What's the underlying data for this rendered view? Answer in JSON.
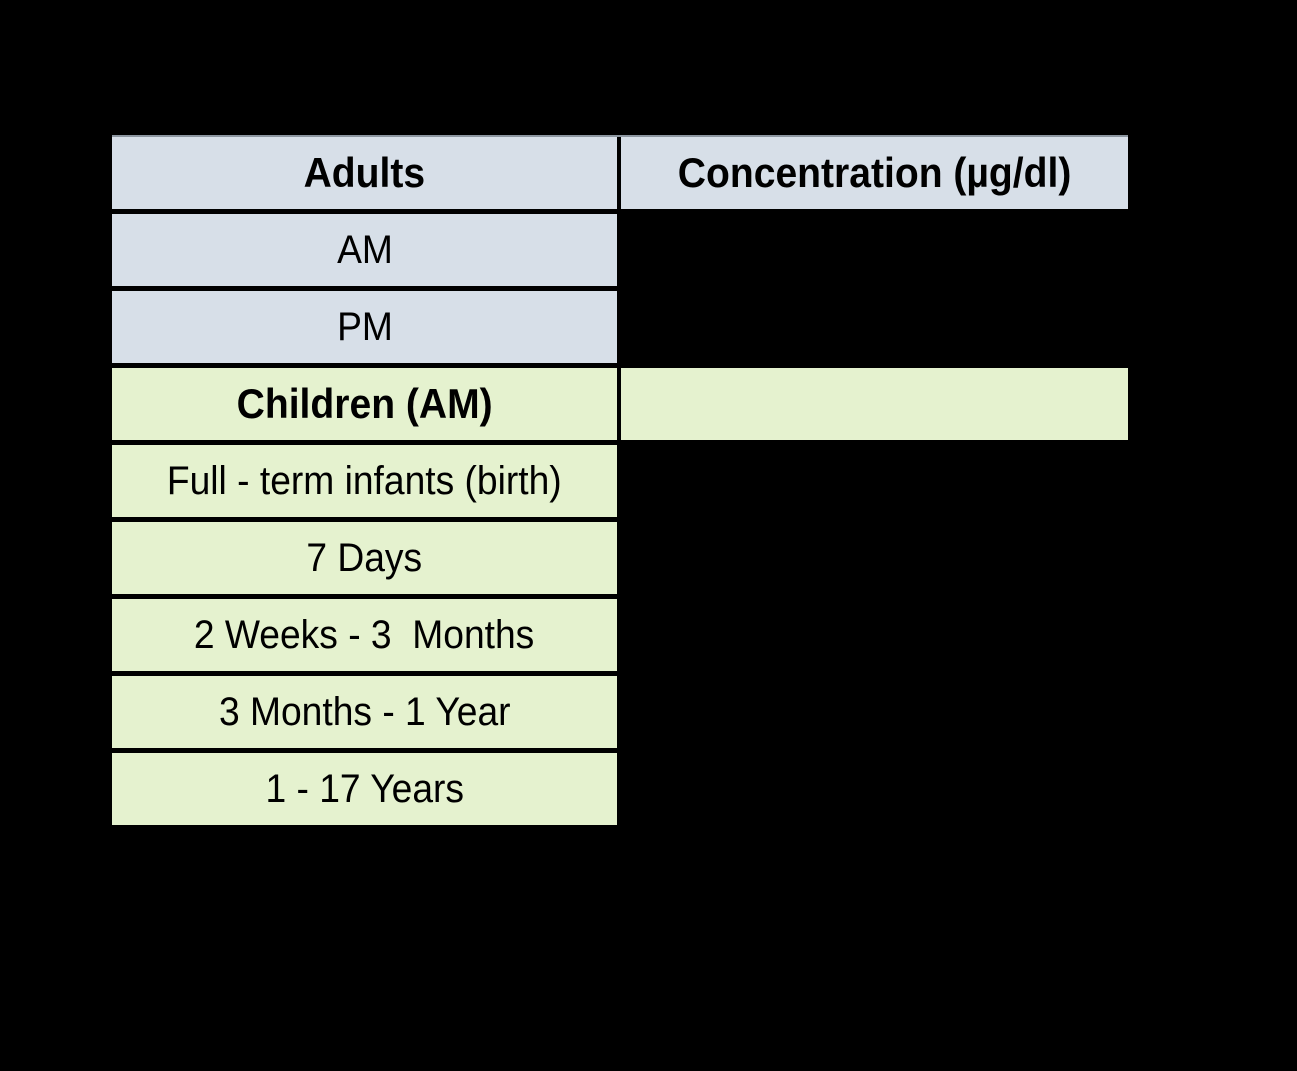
{
  "page": {
    "background": "#000000"
  },
  "colors": {
    "header_bg": "#d7dfe8",
    "adult_row_bg": "#d7dfe8",
    "child_row_bg": "#e5f2cf",
    "grid_line": "#000000",
    "top_edge": "#8c96a0",
    "text": "#000000"
  },
  "table": {
    "header": {
      "col1": "Adults",
      "col2": "Concentration (µg/dl)"
    },
    "rows": [
      {
        "label": "AM",
        "value": "",
        "section": "adults",
        "bold": false,
        "value_cell_filled": false
      },
      {
        "label": "PM",
        "value": "",
        "section": "adults",
        "bold": false,
        "value_cell_filled": false
      },
      {
        "label": "Children (AM)",
        "value": "",
        "section": "children",
        "bold": true,
        "value_cell_filled": true
      },
      {
        "label": "Full - term infants (birth)",
        "value": "",
        "section": "children",
        "bold": false,
        "value_cell_filled": false
      },
      {
        "label": "7 Days",
        "value": "",
        "section": "children",
        "bold": false,
        "value_cell_filled": false
      },
      {
        "label": "2 Weeks - 3  Months",
        "value": "",
        "section": "children",
        "bold": false,
        "value_cell_filled": false
      },
      {
        "label": "3 Months - 1 Year",
        "value": "",
        "section": "children",
        "bold": false,
        "value_cell_filled": false
      },
      {
        "label": "1 - 17 Years",
        "value": "",
        "section": "children",
        "bold": false,
        "value_cell_filled": false
      }
    ]
  },
  "chart_data": {
    "type": "table",
    "title": "",
    "columns": [
      "Adults",
      "Concentration (µg/dl)"
    ],
    "rows": [
      [
        "AM",
        ""
      ],
      [
        "PM",
        ""
      ],
      [
        "Children (AM)",
        ""
      ],
      [
        "Full - term infants (birth)",
        ""
      ],
      [
        "7 Days",
        ""
      ],
      [
        "2 Weeks - 3  Months",
        ""
      ],
      [
        "3 Months - 1 Year",
        ""
      ],
      [
        "1 - 17 Years",
        ""
      ]
    ],
    "notes": "Concentration values are not visible in the image (black-on-black); only row labels, headers, and cell fills for header/Children(AM) rows are rendered."
  }
}
